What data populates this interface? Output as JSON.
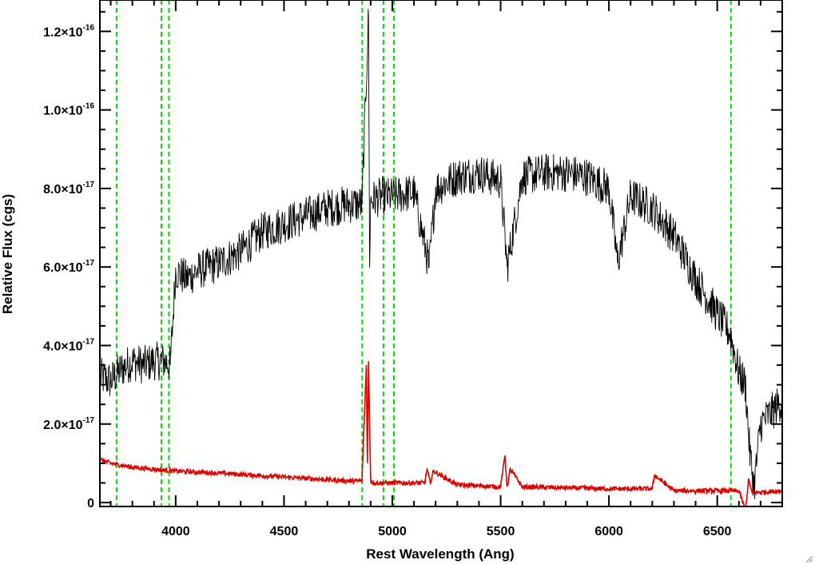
{
  "chart_data": {
    "type": "line",
    "xlabel": "Rest Wavelength (Ang)",
    "ylabel": "Relative Flux (cgs)",
    "xlim": [
      3650,
      6800
    ],
    "ylim": [
      -1e-18,
      1.28e-16
    ],
    "x_ticks": [
      {
        "value": 4000,
        "label": "4000"
      },
      {
        "value": 4500,
        "label": "4500"
      },
      {
        "value": 5000,
        "label": "5000"
      },
      {
        "value": 5500,
        "label": "5500"
      },
      {
        "value": 6000,
        "label": "6000"
      },
      {
        "value": 6500,
        "label": "6500"
      }
    ],
    "y_ticks": [
      {
        "value": 0,
        "mant": "0",
        "exp": ""
      },
      {
        "value": 2e-17,
        "mant": "2.0×10",
        "exp": "-17"
      },
      {
        "value": 4e-17,
        "mant": "4.0×10",
        "exp": "-17"
      },
      {
        "value": 6e-17,
        "mant": "6.0×10",
        "exp": "-17"
      },
      {
        "value": 8e-17,
        "mant": "8.0×10",
        "exp": "-17"
      },
      {
        "value": 1e-16,
        "mant": "1.0×10",
        "exp": "-16"
      },
      {
        "value": 1.2e-16,
        "mant": "1.2×10",
        "exp": "-16"
      }
    ],
    "grid": false,
    "series": [
      {
        "role": "spectrum",
        "color": "#000000",
        "x": [
          3650,
          3700,
          3750,
          3800,
          3850,
          3900,
          3950,
          3975,
          4000,
          4050,
          4100,
          4150,
          4200,
          4300,
          4400,
          4500,
          4600,
          4700,
          4800,
          4860,
          4890,
          4895,
          4900,
          4950,
          5000,
          5100,
          5170,
          5200,
          5300,
          5400,
          5500,
          5530,
          5600,
          5700,
          5800,
          5900,
          6000,
          6040,
          6100,
          6200,
          6300,
          6400,
          6500,
          6560,
          6600,
          6630,
          6650,
          6670,
          6700,
          6750,
          6800
        ],
        "y": [
          3.2e-17,
          3.1e-17,
          3.4e-17,
          3.6e-17,
          3.5e-17,
          3.6e-17,
          3.6e-17,
          3.5e-17,
          5.9e-17,
          5.7e-17,
          5.9e-17,
          6e-17,
          6.1e-17,
          6.4e-17,
          6.9e-17,
          7.1e-17,
          7.3e-17,
          7.5e-17,
          7.6e-17,
          7.6e-17,
          1.24e-16,
          6.2e-17,
          7.7e-17,
          7.8e-17,
          7.8e-17,
          7.9e-17,
          6e-17,
          8e-17,
          8.3e-17,
          8.4e-17,
          8.2e-17,
          6e-17,
          8.3e-17,
          8.4e-17,
          8.4e-17,
          8.3e-17,
          8e-17,
          6.1e-17,
          7.8e-17,
          7.5e-17,
          6.8e-17,
          5.7e-17,
          4.8e-17,
          4.3e-17,
          3.3e-17,
          3e-17,
          1.3e-17,
          4e-18,
          2e-17,
          2.3e-17,
          2.6e-17
        ],
        "noise_amplitude": 5e-18
      },
      {
        "role": "error",
        "color": "#e00000",
        "x": [
          3650,
          3700,
          3750,
          3800,
          3900,
          4000,
          4200,
          4500,
          4800,
          4860,
          4880,
          4885,
          4890,
          4900,
          4920,
          5000,
          5150,
          5160,
          5175,
          5190,
          5300,
          5500,
          5520,
          5530,
          5545,
          5600,
          6000,
          6200,
          6210,
          6300,
          6500,
          6600,
          6630,
          6645,
          6660,
          6800
        ],
        "y": [
          1.1e-17,
          1e-17,
          9.5e-18,
          9e-18,
          8.5e-18,
          8e-18,
          7.5e-18,
          6.5e-18,
          5.5e-18,
          5.5e-18,
          3.5e-17,
          1e-17,
          3.6e-17,
          5.5e-18,
          5e-18,
          5e-18,
          5e-18,
          8.5e-18,
          5e-18,
          8e-18,
          4.5e-18,
          4e-18,
          1.2e-17,
          4e-18,
          8.5e-18,
          4e-18,
          3.5e-18,
          3.5e-18,
          7e-18,
          3e-18,
          3e-18,
          3e-18,
          -2e-18,
          6e-18,
          2.5e-18,
          3e-18
        ],
        "noise_amplitude": 6e-19
      }
    ],
    "vlines": {
      "color": "#00dd00",
      "style": "dashed",
      "x": [
        3727,
        3934,
        3969,
        4861,
        4959,
        5007,
        6563
      ]
    }
  }
}
